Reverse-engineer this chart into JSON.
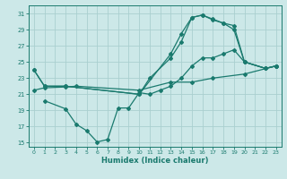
{
  "title": "",
  "xlabel": "Humidex (Indice chaleur)",
  "background_color": "#cce8e8",
  "line_color": "#1a7a6e",
  "grid_color": "#aacfcf",
  "xlim": [
    -0.5,
    23.5
  ],
  "ylim": [
    14.5,
    32
  ],
  "yticks": [
    15,
    17,
    19,
    21,
    23,
    25,
    27,
    29,
    31
  ],
  "xticks": [
    0,
    1,
    2,
    3,
    4,
    5,
    6,
    7,
    8,
    9,
    10,
    11,
    12,
    13,
    14,
    15,
    16,
    17,
    18,
    19,
    20,
    21,
    22,
    23
  ],
  "line1_x": [
    0,
    1,
    3,
    10,
    13,
    14,
    15,
    16,
    17,
    18,
    19,
    20,
    22,
    23
  ],
  "line1_y": [
    24,
    22,
    22,
    21,
    26,
    28.5,
    30.5,
    30.8,
    30.2,
    29.8,
    29.0,
    25.0,
    24.2,
    24.5
  ],
  "line2_x": [
    0,
    1,
    3,
    10,
    11,
    13,
    14,
    15,
    16,
    17,
    18,
    19,
    20,
    22,
    23
  ],
  "line2_y": [
    24,
    22,
    22,
    21,
    23,
    25.5,
    27.5,
    30.5,
    30.8,
    30.3,
    29.8,
    29.5,
    25.0,
    24.2,
    24.5
  ],
  "line3_x": [
    1,
    3,
    4,
    5,
    6,
    7,
    8,
    9,
    10,
    11,
    12,
    13,
    14,
    15,
    16,
    17,
    18,
    19,
    20,
    22,
    23
  ],
  "line3_y": [
    20.2,
    19.2,
    17.3,
    16.5,
    15.1,
    15.4,
    19.3,
    19.3,
    21.2,
    21.0,
    21.5,
    22.0,
    23.0,
    24.5,
    25.5,
    25.5,
    26.0,
    26.5,
    25.0,
    24.2,
    24.5
  ],
  "line4_x": [
    0,
    1,
    3,
    4,
    10,
    13,
    15,
    17,
    20,
    23
  ],
  "line4_y": [
    21.5,
    21.8,
    21.9,
    22.0,
    21.5,
    22.5,
    22.5,
    23.0,
    23.5,
    24.5
  ]
}
